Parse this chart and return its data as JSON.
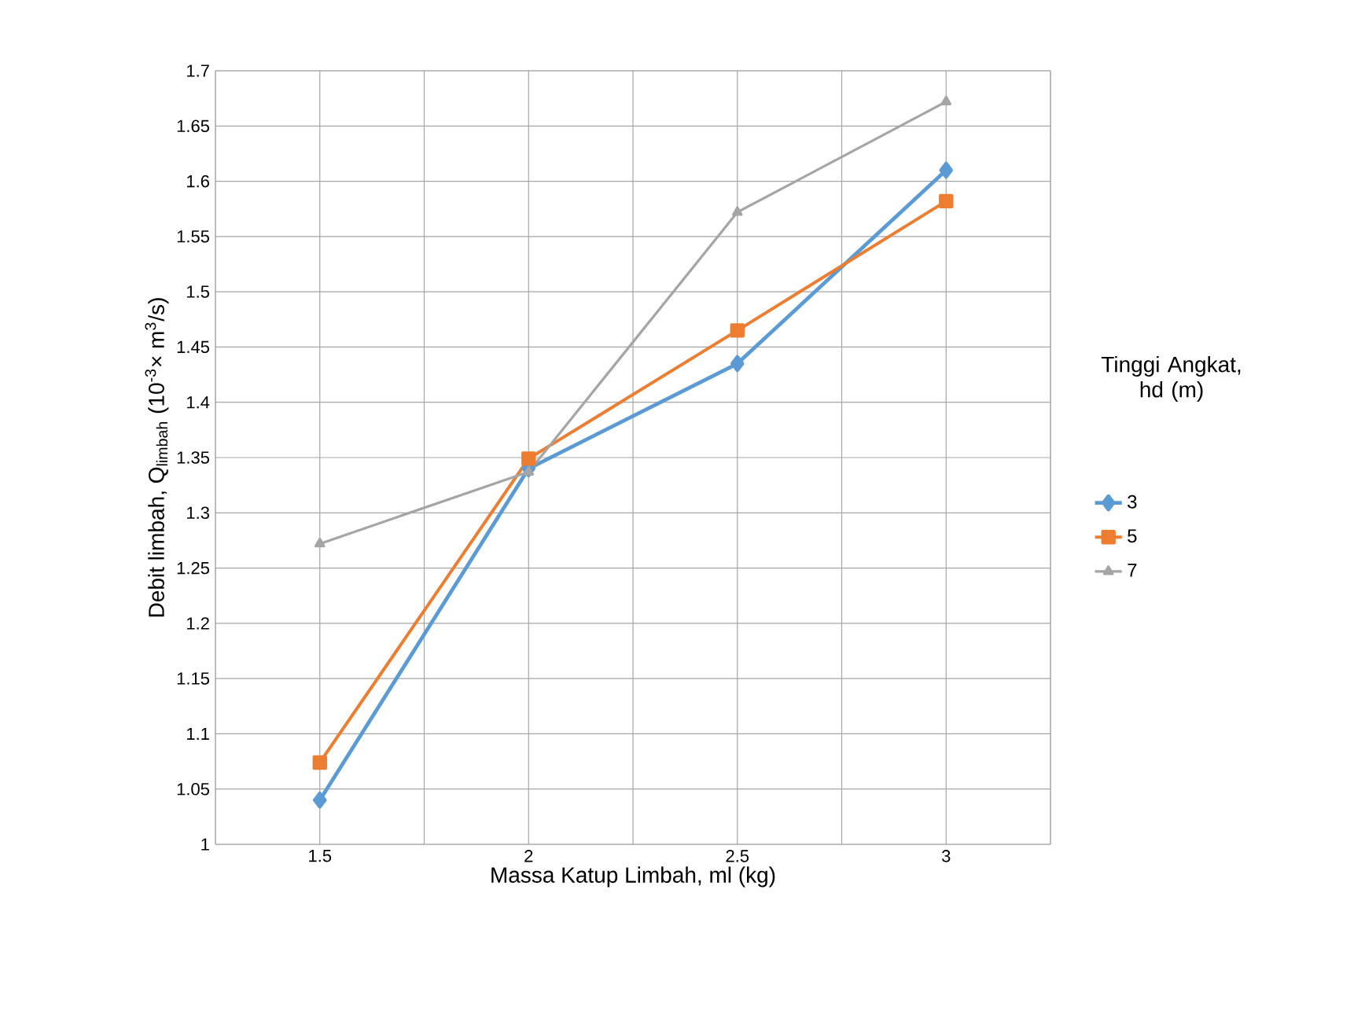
{
  "chart_data": {
    "type": "line",
    "xlabel": "Massa Katup Limbah, ml (kg)",
    "ylabel": "Debit limbah, Q$_{limbah}$ (10$^{-3}$× m$^{3}$/s)",
    "legend_title": "Tinggi Angkat, hd (m)",
    "x": [
      1.5,
      2,
      2.5,
      3
    ],
    "series": [
      {
        "name": "3",
        "color": "#5b9bd5",
        "marker": "diamond",
        "values": [
          1.04,
          1.34,
          1.435,
          1.61
        ]
      },
      {
        "name": "5",
        "color": "#ed7d31",
        "marker": "square",
        "values": [
          1.074,
          1.349,
          1.465,
          1.582
        ]
      },
      {
        "name": "7",
        "color": "#a5a5a5",
        "marker": "triangle",
        "values": [
          1.272,
          1.337,
          1.572,
          1.672
        ]
      }
    ],
    "xlim": [
      1.25,
      3.25
    ],
    "xticks": [
      {
        "value": 1.25,
        "label": null
      },
      1.5,
      {
        "value": 1.75,
        "label": null
      },
      2,
      {
        "value": 2.25,
        "label": null
      },
      2.5,
      {
        "value": 2.75,
        "label": null
      },
      3,
      {
        "value": 3.25,
        "label": null
      }
    ],
    "ylim": [
      1,
      1.7
    ],
    "yticks": [
      1,
      1.05,
      1.1,
      1.15,
      1.2,
      1.25,
      1.3,
      1.35,
      1.4,
      1.45,
      1.5,
      1.55,
      1.6,
      1.65,
      1.7
    ],
    "grid": true,
    "legend": "right",
    "line_style": "solid"
  }
}
